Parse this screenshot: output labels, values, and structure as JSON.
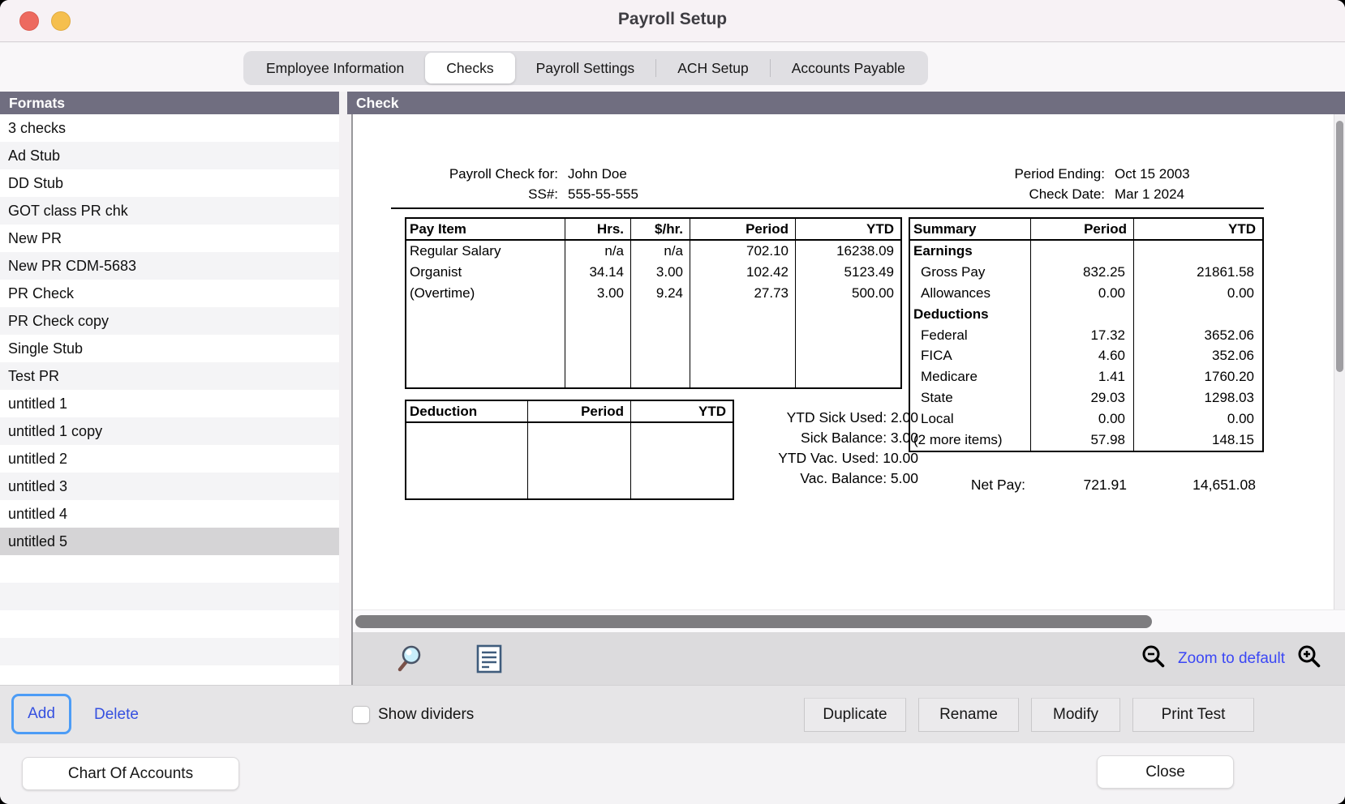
{
  "window": {
    "title": "Payroll Setup"
  },
  "tabs": [
    {
      "label": "Employee Information",
      "selected": false
    },
    {
      "label": "Checks",
      "selected": true
    },
    {
      "label": "Payroll Settings",
      "selected": false
    },
    {
      "label": "ACH Setup",
      "selected": false
    },
    {
      "label": "Accounts Payable",
      "selected": false
    }
  ],
  "panels": {
    "formats_header": "Formats",
    "check_header": "Check"
  },
  "formats": {
    "items": [
      "3 checks",
      "Ad Stub",
      "DD Stub",
      "GOT class PR chk",
      "New PR",
      "New PR CDM-5683",
      "PR Check",
      "PR Check copy",
      "Single Stub",
      "Test PR",
      "untitled 1",
      "untitled 1 copy",
      "untitled 2",
      "untitled 3",
      "untitled 4",
      "untitled 5"
    ],
    "selected_index": 15
  },
  "check": {
    "payee": {
      "label": "Payroll Check for:",
      "value": "John Doe"
    },
    "ssn": {
      "label": "SS#:",
      "value": "555-55-555"
    },
    "period_ending": {
      "label": "Period Ending:",
      "value": "Oct 15 2003"
    },
    "check_date": {
      "label": "Check Date:",
      "value": "Mar 1 2024"
    },
    "pay_items": {
      "headers": [
        "Pay Item",
        "Hrs.",
        "$/hr.",
        "Period",
        "YTD"
      ],
      "rows": [
        [
          "Regular Salary",
          "n/a",
          "n/a",
          "702.10",
          "16238.09"
        ],
        [
          "Organist",
          "34.14",
          "3.00",
          "102.42",
          "5123.49"
        ],
        [
          "(Overtime)",
          "3.00",
          "9.24",
          "27.73",
          "500.00"
        ]
      ]
    },
    "deduction_table": {
      "headers": [
        "Deduction",
        "Period",
        "YTD"
      ],
      "rows": []
    },
    "leave": [
      {
        "label": "YTD Sick Used:",
        "value": "2.00"
      },
      {
        "label": "Sick Balance:",
        "value": "3.00"
      },
      {
        "label": "YTD Vac. Used:",
        "value": "10.00"
      },
      {
        "label": "Vac. Balance:",
        "value": "5.00"
      }
    ],
    "summary": {
      "headers": [
        "Summary",
        "Period",
        "YTD"
      ],
      "rows": [
        {
          "label": "Earnings",
          "period": "",
          "ytd": "",
          "type": "section"
        },
        {
          "label": "Gross Pay",
          "period": "832.25",
          "ytd": "21861.58",
          "type": "item"
        },
        {
          "label": "Allowances",
          "period": "0.00",
          "ytd": "0.00",
          "type": "item"
        },
        {
          "label": "Deductions",
          "period": "",
          "ytd": "",
          "type": "section"
        },
        {
          "label": "Federal",
          "period": "17.32",
          "ytd": "3652.06",
          "type": "item"
        },
        {
          "label": "FICA",
          "period": "4.60",
          "ytd": "352.06",
          "type": "item"
        },
        {
          "label": "Medicare",
          "period": "1.41",
          "ytd": "1760.20",
          "type": "item"
        },
        {
          "label": "State",
          "period": "29.03",
          "ytd": "1298.03",
          "type": "item"
        },
        {
          "label": "Local",
          "period": "0.00",
          "ytd": "0.00",
          "type": "item"
        },
        {
          "label": "(2 more items)",
          "period": "57.98",
          "ytd": "148.15",
          "type": "overflow"
        }
      ]
    },
    "net_pay": {
      "label": "Net Pay:",
      "period": "721.91",
      "ytd": "14,651.08"
    }
  },
  "preview_toolbar": {
    "zoom_to_default": "Zoom to default"
  },
  "actions": {
    "add": "Add",
    "delete": "Delete",
    "show_dividers": "Show dividers",
    "show_dividers_checked": false,
    "duplicate": "Duplicate",
    "rename": "Rename",
    "modify": "Modify",
    "print_test": "Print Test"
  },
  "footer": {
    "chart_of_accounts": "Chart Of Accounts",
    "close": "Close"
  },
  "icons": {
    "titlebar": [
      "close-window-icon",
      "minimize-window-icon"
    ],
    "toolbar": [
      "magnifier-icon",
      "document-icon",
      "zoom-out-icon",
      "zoom-in-icon"
    ]
  },
  "colors": {
    "panel_header": "#706e80",
    "accent_link_blue": "#3b47f5",
    "focus_ring_blue": "#4c9cf6",
    "selection_gray": "#d5d4d6",
    "traffic_red": "#ed6a5f",
    "traffic_yellow": "#f5bf4e"
  }
}
